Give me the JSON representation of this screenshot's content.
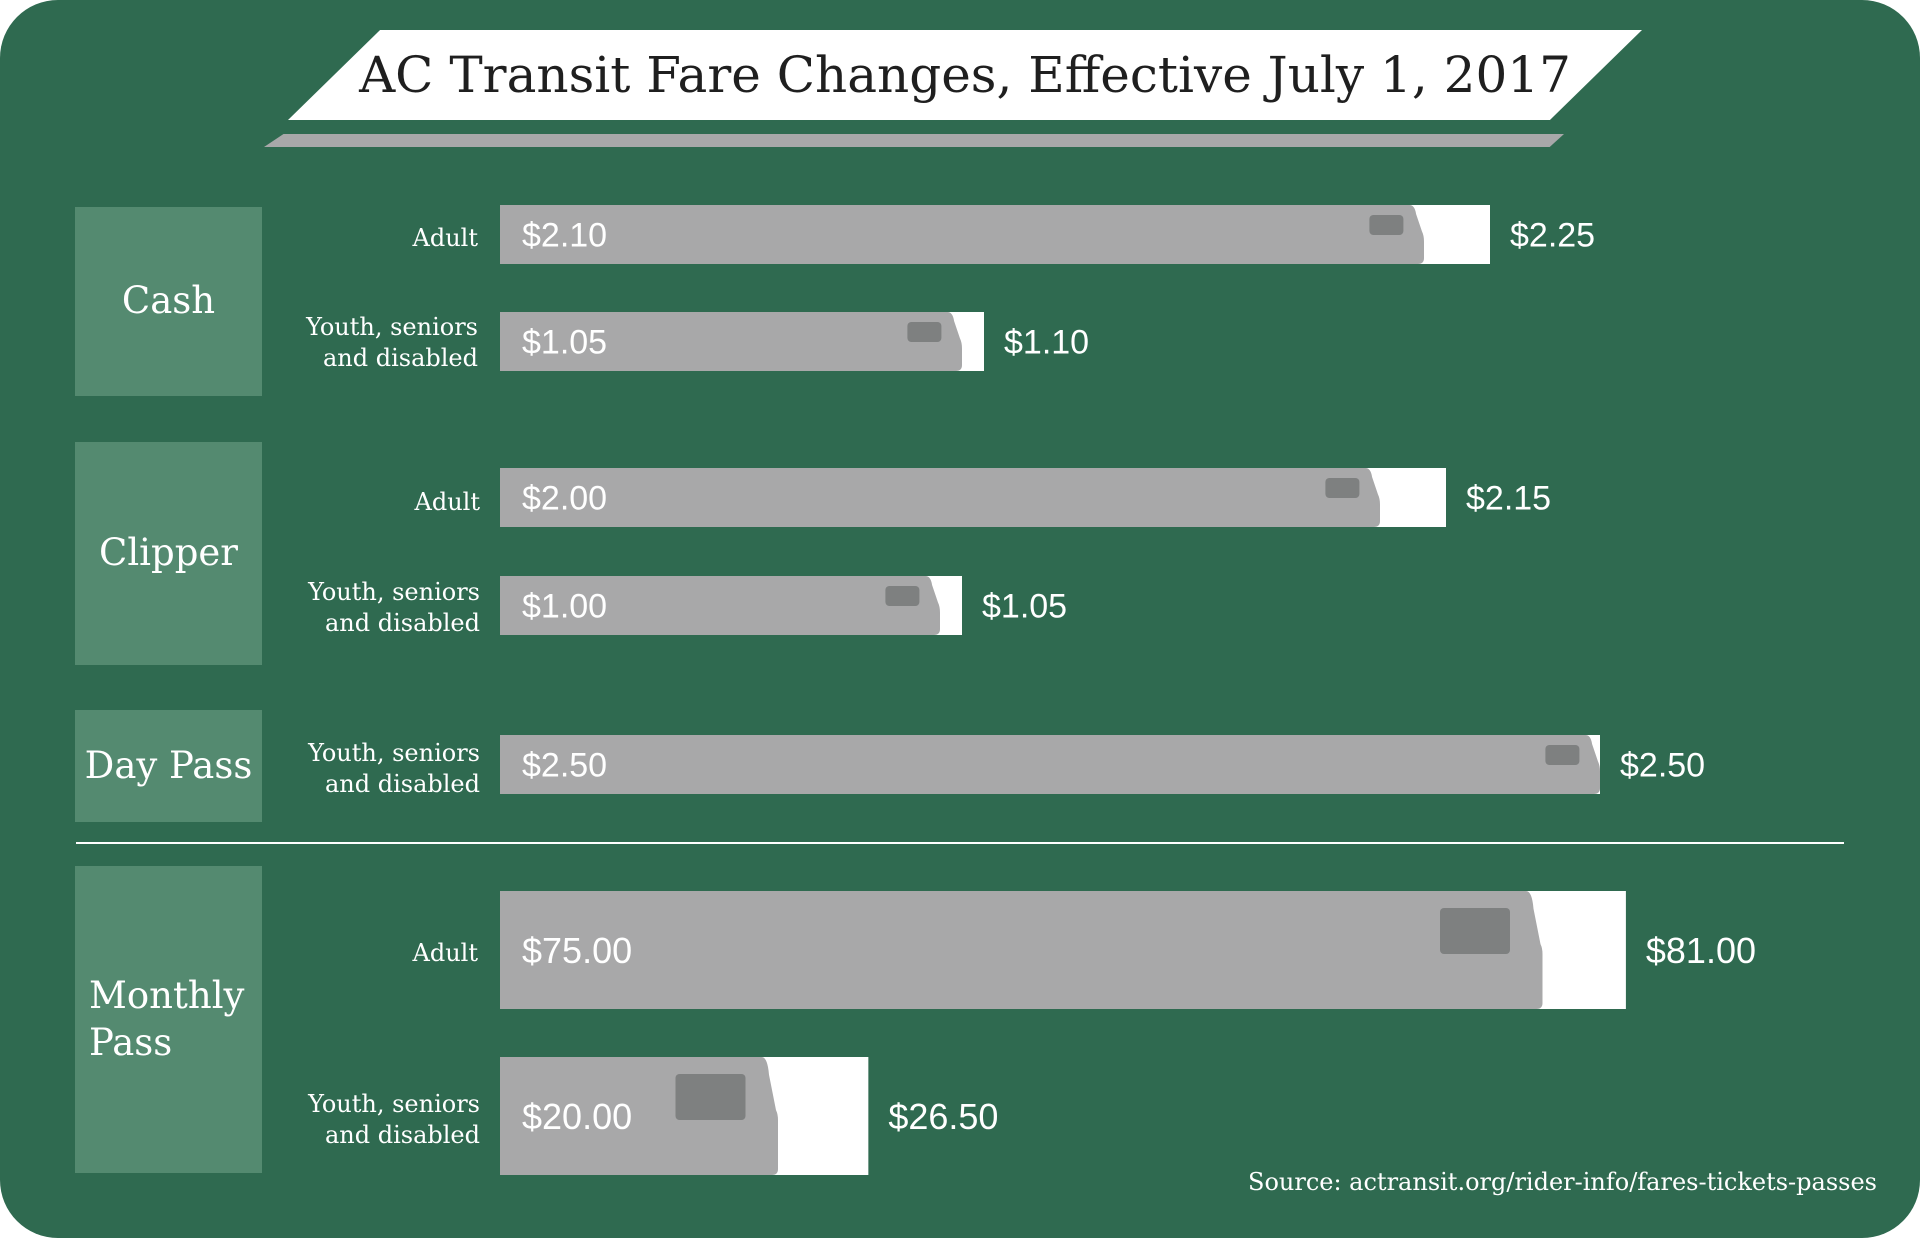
{
  "colors": {
    "background": "#2f6a50",
    "category_box": "#548a70",
    "bar_old": "#a8a8a9",
    "bar_new": "#ffffff",
    "window": "#7e8080"
  },
  "source_text": "Source: actransit.org/rider-info/fares-tickets-passes",
  "chart_data": {
    "type": "bar",
    "title": "AC Transit Fare Changes, Effective July 1, 2017",
    "legend": "none",
    "series": [
      {
        "values": [
          2.1,
          1.05,
          2.0,
          1.0,
          2.5,
          75.0,
          20.0
        ]
      },
      {
        "values": [
          2.25,
          1.1,
          2.15,
          1.05,
          2.5,
          81.0,
          26.5
        ]
      }
    ],
    "groups": [
      {
        "name": "Cash",
        "rows": [
          {
            "label": "Adult",
            "old_label": "$2.10",
            "new_label": "$2.25",
            "old": 2.1,
            "new": 2.25
          },
          {
            "label": "Youth, seniors\nand disabled",
            "old_label": "$1.05",
            "new_label": "$1.10",
            "old": 1.05,
            "new": 1.1
          }
        ]
      },
      {
        "name": "Clipper",
        "rows": [
          {
            "label": "Adult",
            "old_label": "$2.00",
            "new_label": "$2.15",
            "old": 2.0,
            "new": 2.15
          },
          {
            "label": "Youth, seniors\nand disabled",
            "old_label": "$1.00",
            "new_label": "$1.05",
            "old": 1.0,
            "new": 1.05
          }
        ]
      },
      {
        "name": "Day Pass",
        "rows": [
          {
            "label": "Youth, seniors\nand disabled",
            "old_label": "$2.50",
            "new_label": "$2.50",
            "old": 2.5,
            "new": 2.5
          }
        ]
      },
      {
        "name": "Monthly\nPass",
        "rows": [
          {
            "label": "Adult",
            "old_label": "$75.00",
            "new_label": "$81.00",
            "old": 75.0,
            "new": 81.0
          },
          {
            "label": "Youth, seniors\nand disabled",
            "old_label": "$20.00",
            "new_label": "$26.50",
            "old": 20.0,
            "new": 26.5
          }
        ]
      }
    ]
  }
}
